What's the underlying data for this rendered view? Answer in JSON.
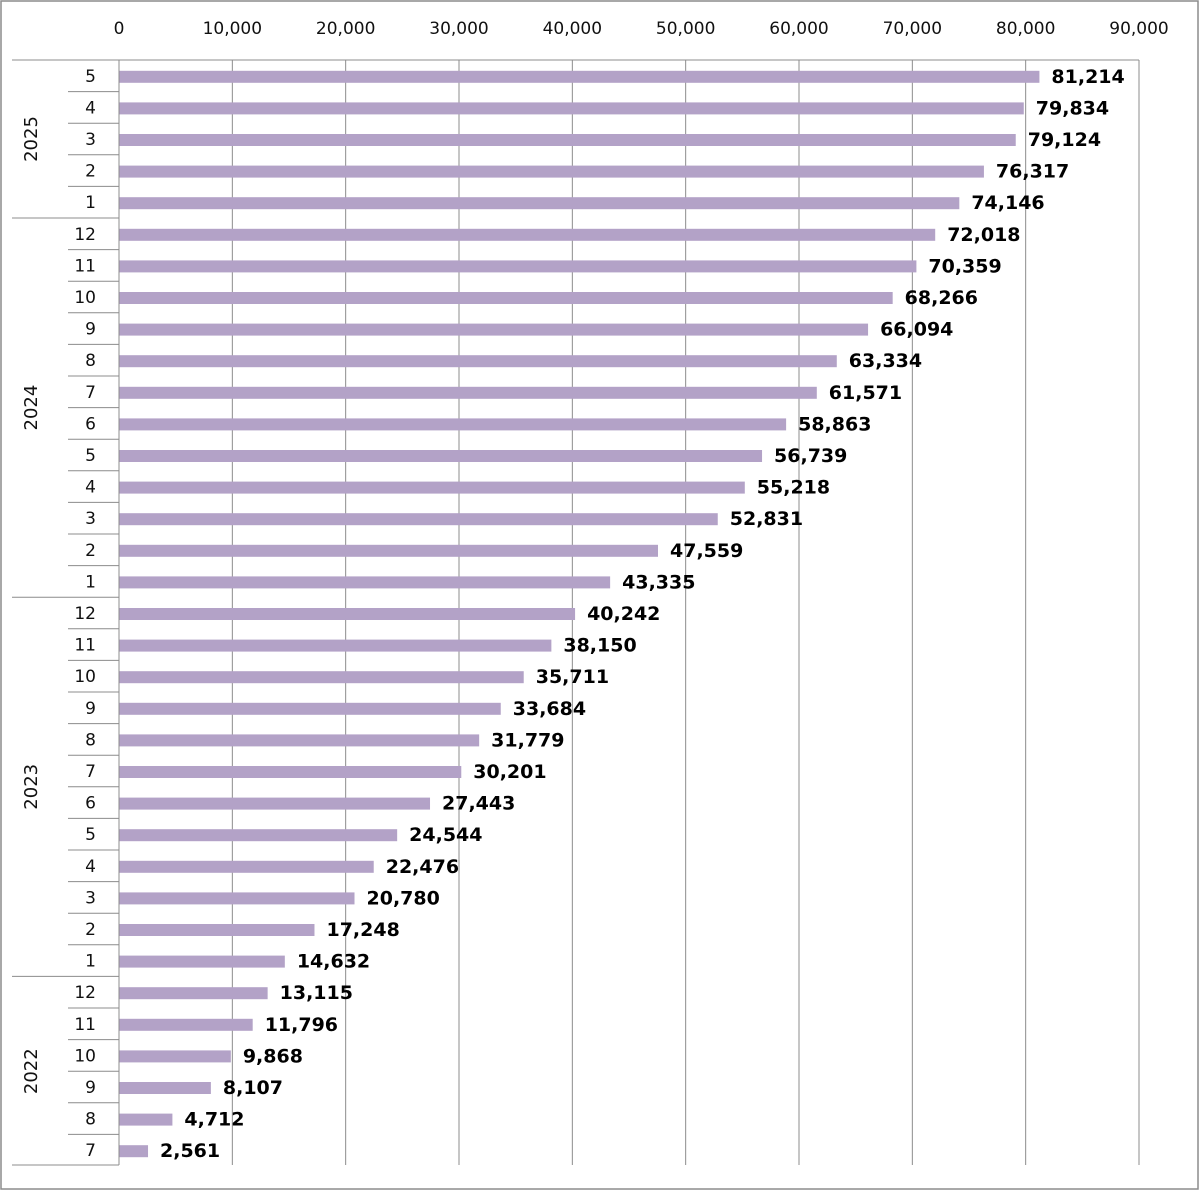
{
  "chart_data": {
    "type": "bar",
    "orientation": "horizontal",
    "xlim": [
      0,
      90000
    ],
    "x_ticks": [
      "0",
      "10,000",
      "20,000",
      "30,000",
      "40,000",
      "50,000",
      "60,000",
      "70,000",
      "80,000",
      "90,000"
    ],
    "x_axis_position": "top",
    "grid": true,
    "bar_color": "#b3a2c7",
    "groups": [
      {
        "year": "2025",
        "months": [
          "5",
          "4",
          "3",
          "2",
          "1"
        ],
        "values": [
          81214,
          79834,
          79124,
          76317,
          74146
        ],
        "labels": [
          "81,214",
          "79,834",
          "79,124",
          "76,317",
          "74,146"
        ]
      },
      {
        "year": "2024",
        "months": [
          "12",
          "11",
          "10",
          "9",
          "8",
          "7",
          "6",
          "5",
          "4",
          "3",
          "2",
          "1"
        ],
        "values": [
          72018,
          70359,
          68266,
          66094,
          63334,
          61571,
          58863,
          56739,
          55218,
          52831,
          47559,
          43335
        ],
        "labels": [
          "72,018",
          "70,359",
          "68,266",
          "66,094",
          "63,334",
          "61,571",
          "58,863",
          "56,739",
          "55,218",
          "52,831",
          "47,559",
          "43,335"
        ]
      },
      {
        "year": "2023",
        "months": [
          "12",
          "11",
          "10",
          "9",
          "8",
          "7",
          "6",
          "5",
          "4",
          "3",
          "2",
          "1"
        ],
        "values": [
          40242,
          38150,
          35711,
          33684,
          31779,
          30201,
          27443,
          24544,
          22476,
          20780,
          17248,
          14632
        ],
        "labels": [
          "40,242",
          "38,150",
          "35,711",
          "33,684",
          "31,779",
          "30,201",
          "27,443",
          "24,544",
          "22,476",
          "20,780",
          "17,248",
          "14,632"
        ]
      },
      {
        "year": "2022",
        "months": [
          "12",
          "11",
          "10",
          "9",
          "8",
          "7"
        ],
        "values": [
          13115,
          11796,
          9868,
          8107,
          4712,
          2561
        ],
        "labels": [
          "13,115",
          "11,796",
          "9,868",
          "8,107",
          "4,712",
          "2,561"
        ]
      }
    ]
  }
}
